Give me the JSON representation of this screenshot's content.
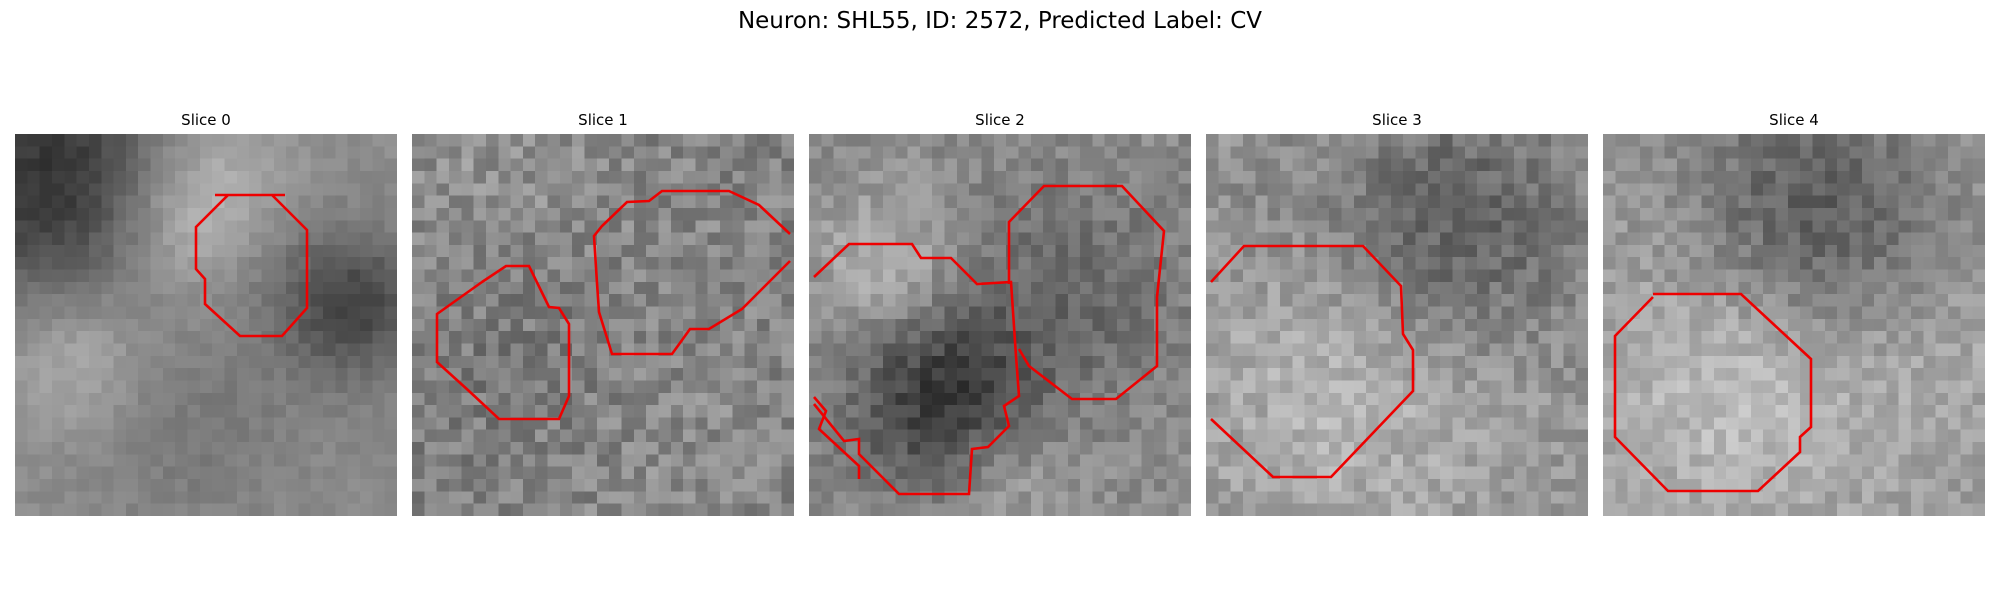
{
  "figure": {
    "title": "Neuron: SHL55, ID: 2572, Predicted Label: CV"
  },
  "panels": [
    {
      "title": "Slice 0",
      "seed": 11,
      "contours": 1
    },
    {
      "title": "Slice 1",
      "seed": 23,
      "contours": 2
    },
    {
      "title": "Slice 2",
      "seed": 37,
      "contours": 2
    },
    {
      "title": "Slice 3",
      "seed": 41,
      "contours": 2
    },
    {
      "title": "Slice 4",
      "seed": 53,
      "contours": 1
    }
  ],
  "colors": {
    "contour": "#ee0000",
    "background": "#ffffff"
  }
}
